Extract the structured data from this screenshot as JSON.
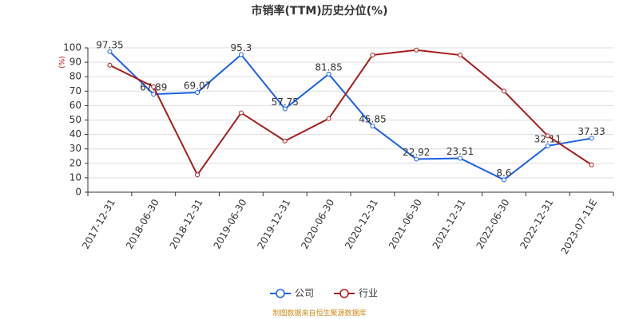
{
  "chart_data": {
    "type": "line",
    "title": "市销率(TTM)历史分位(%)",
    "y_label": "(%)",
    "categories": [
      "2017-12-31",
      "2018-06-30",
      "2018-12-31",
      "2019-06-30",
      "2019-12-31",
      "2020-06-30",
      "2020-12-31",
      "2021-06-30",
      "2021-12-31",
      "2022-06-30",
      "2022-12-31",
      "2023-07-11E"
    ],
    "series": [
      {
        "name": "公司",
        "color": "#1a5fe8",
        "values": [
          97.35,
          67.89,
          69.07,
          95.3,
          57.75,
          81.85,
          45.85,
          22.92,
          23.51,
          8.6,
          32.11,
          37.33
        ],
        "data_labels": true
      },
      {
        "name": "行业",
        "color": "#a81c1c",
        "values": [
          88,
          73,
          12,
          55,
          35.5,
          51,
          95,
          98.5,
          95,
          70,
          39,
          19
        ],
        "data_labels": false
      }
    ],
    "ylim": [
      0,
      100
    ],
    "yticks": [
      0,
      10,
      20,
      30,
      40,
      50,
      60,
      70,
      80,
      90,
      100
    ],
    "grid": true,
    "source": "制图数据来自恒生聚源数据库"
  }
}
